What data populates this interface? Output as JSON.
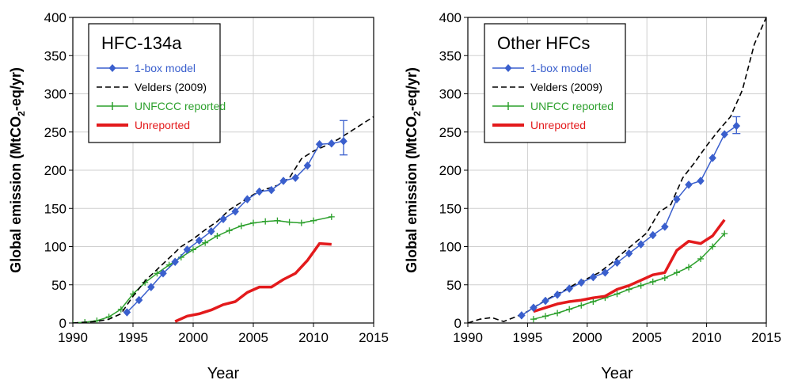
{
  "chart_data": [
    {
      "type": "line",
      "title": "HFC-134a",
      "xlabel": "Year",
      "ylabel_main": "Global emission (MtCO",
      "ylabel_sub": "2",
      "ylabel_tail": "-eq/yr)",
      "xlim": [
        1990,
        2015
      ],
      "ylim": [
        0,
        400
      ],
      "xticks": [
        1990,
        1995,
        2000,
        2005,
        2010,
        2015
      ],
      "yticks": [
        0,
        50,
        100,
        150,
        200,
        250,
        300,
        350,
        400
      ],
      "grid": true,
      "legend_position": "top-left",
      "series": [
        {
          "name": "1-box model",
          "color": "#3a5fcd",
          "style": "solid-diamond",
          "x": [
            1994.5,
            1995.5,
            1996.5,
            1997.5,
            1998.5,
            1999.5,
            2000.5,
            2001.5,
            2002.5,
            2003.5,
            2004.5,
            2005.5,
            2006.5,
            2007.5,
            2008.5,
            2009.5,
            2010.5,
            2011.5,
            2012.5
          ],
          "y": [
            14,
            30,
            47,
            65,
            80,
            96,
            108,
            120,
            136,
            146,
            162,
            172,
            174,
            186,
            190,
            206,
            234,
            235,
            238
          ],
          "err_x": [
            2012.5
          ],
          "err_lo": [
            220
          ],
          "err_hi": [
            265
          ]
        },
        {
          "name": "Velders (2009)",
          "color": "#000000",
          "style": "dashed",
          "x": [
            1990,
            1992,
            1993,
            1994,
            1995,
            1996,
            1997,
            1998,
            1999,
            2000,
            2001,
            2002,
            2003,
            2004,
            2005,
            2006,
            2007,
            2008,
            2009,
            2010,
            2011,
            2012,
            2013,
            2014,
            2015
          ],
          "y": [
            0,
            2,
            5,
            12,
            35,
            55,
            70,
            85,
            100,
            110,
            122,
            133,
            148,
            158,
            168,
            175,
            180,
            190,
            215,
            225,
            232,
            240,
            250,
            260,
            270
          ]
        },
        {
          "name": "UNFCCC reported",
          "color": "#2ca02c",
          "style": "solid-plus",
          "x": [
            1990,
            1991,
            1992,
            1993,
            1994,
            1995,
            1996,
            1997,
            1998,
            1999,
            2000,
            2001,
            2002,
            2003,
            2004,
            2005,
            2006,
            2007,
            2008,
            2009,
            2010,
            2011.5
          ],
          "y": [
            0,
            1,
            3,
            8,
            18,
            38,
            53,
            65,
            76,
            86,
            96,
            105,
            114,
            121,
            127,
            131,
            133,
            134,
            132,
            131,
            134,
            139
          ]
        },
        {
          "name": "Unreported",
          "color": "#e31a1c",
          "style": "thick",
          "x": [
            1998.5,
            1999.5,
            2000.5,
            2001.5,
            2002.5,
            2003.5,
            2004.5,
            2005.5,
            2006.5,
            2007.5,
            2008.5,
            2009.5,
            2010.5,
            2011.5
          ],
          "y": [
            2,
            9,
            12,
            17,
            24,
            28,
            40,
            47,
            47,
            57,
            65,
            82,
            104,
            103
          ]
        }
      ]
    },
    {
      "type": "line",
      "title": "Other HFCs",
      "xlabel": "Year",
      "ylabel_main": "Global emission (MtCO",
      "ylabel_sub": "2",
      "ylabel_tail": "-eq/yr)",
      "xlim": [
        1990,
        2015
      ],
      "ylim": [
        0,
        400
      ],
      "xticks": [
        1990,
        1995,
        2000,
        2005,
        2010,
        2015
      ],
      "yticks": [
        0,
        50,
        100,
        150,
        200,
        250,
        300,
        350,
        400
      ],
      "grid": true,
      "legend_position": "top-left",
      "series": [
        {
          "name": "1-box model",
          "color": "#3a5fcd",
          "style": "solid-diamond",
          "x": [
            1994.5,
            1995.5,
            1996.5,
            1997.5,
            1998.5,
            1999.5,
            2000.5,
            2001.5,
            2002.5,
            2003.5,
            2004.5,
            2005.5,
            2006.5,
            2007.5,
            2008.5,
            2009.5,
            2010.5,
            2011.5,
            2012.5
          ],
          "y": [
            10,
            20,
            29,
            37,
            45,
            53,
            60,
            66,
            79,
            91,
            103,
            115,
            126,
            162,
            181,
            186,
            216,
            247,
            258
          ],
          "err_x": [
            2012.5
          ],
          "err_lo": [
            248
          ],
          "err_hi": [
            270
          ]
        },
        {
          "name": "Velders (2009)",
          "color": "#000000",
          "style": "dashed",
          "x": [
            1990,
            1991,
            1992,
            1993,
            1994,
            1995,
            1996,
            1997,
            1998,
            1999,
            2000,
            2001,
            2002,
            2003,
            2004,
            2005,
            2006,
            2007,
            2008,
            2009,
            2010,
            2011,
            2012,
            2013,
            2014,
            2015
          ],
          "y": [
            0,
            5,
            7,
            2,
            8,
            15,
            25,
            34,
            42,
            51,
            58,
            66,
            78,
            92,
            105,
            118,
            145,
            155,
            190,
            210,
            232,
            252,
            270,
            305,
            365,
            400
          ]
        },
        {
          "name": "UNFCC reported",
          "color": "#2ca02c",
          "style": "solid-plus",
          "x": [
            1995.5,
            1996.5,
            1997.5,
            1998.5,
            1999.5,
            2000.5,
            2001.5,
            2002.5,
            2003.5,
            2004.5,
            2005.5,
            2006.5,
            2007.5,
            2008.5,
            2009.5,
            2010.5,
            2011.5
          ],
          "y": [
            5,
            9,
            13,
            18,
            23,
            28,
            33,
            38,
            44,
            49,
            54,
            59,
            66,
            73,
            84,
            100,
            117
          ]
        },
        {
          "name": "Unreported",
          "color": "#e31a1c",
          "style": "thick",
          "x": [
            1995.5,
            1996.5,
            1997.5,
            1998.5,
            1999.5,
            2000.5,
            2001.5,
            2002.5,
            2003.5,
            2004.5,
            2005.5,
            2006.5,
            2007.5,
            2008.5,
            2009.5,
            2010.5,
            2011.5
          ],
          "y": [
            15,
            20,
            25,
            28,
            30,
            33,
            35,
            44,
            49,
            56,
            63,
            66,
            95,
            107,
            104,
            114,
            135
          ]
        }
      ]
    }
  ]
}
